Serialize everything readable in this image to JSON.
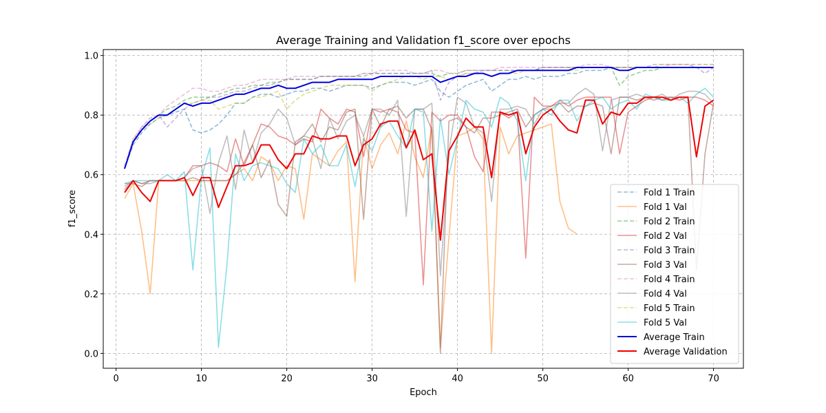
{
  "chart_data": {
    "type": "line",
    "title": "Average Training and Validation f1_score over epochs",
    "xlabel": "Epoch",
    "ylabel": "f1_score",
    "xlim": [
      -1.5,
      73.5
    ],
    "ylim": [
      -0.05,
      1.02
    ],
    "xticks": [
      0,
      10,
      20,
      30,
      40,
      50,
      60,
      70
    ],
    "yticks": [
      0.0,
      0.2,
      0.4,
      0.6,
      0.8,
      1.0
    ],
    "xtick_labels": [
      "0",
      "10",
      "20",
      "30",
      "40",
      "50",
      "60",
      "70"
    ],
    "ytick_labels": [
      "0.0",
      "0.2",
      "0.4",
      "0.6",
      "0.8",
      "1.0"
    ],
    "grid": true,
    "legend_position": "lower right",
    "x": [
      1,
      2,
      3,
      4,
      5,
      6,
      7,
      8,
      9,
      10,
      11,
      12,
      13,
      14,
      15,
      16,
      17,
      18,
      19,
      20,
      21,
      22,
      23,
      24,
      25,
      26,
      27,
      28,
      29,
      30,
      31,
      32,
      33,
      34,
      35,
      36,
      37,
      38,
      39,
      40,
      41,
      42,
      43,
      44,
      45,
      46,
      47,
      48,
      49,
      50,
      51,
      52,
      53,
      54,
      55,
      56,
      57,
      58,
      59,
      60,
      61,
      62,
      63,
      64,
      65,
      66,
      67,
      68,
      69,
      70
    ],
    "series": [
      {
        "name": "Fold 1 Train",
        "color": "#1f77b4",
        "style": "dashed",
        "alpha": 0.5,
        "values": [
          0.62,
          0.7,
          0.74,
          0.77,
          0.79,
          0.8,
          0.81,
          0.82,
          0.75,
          0.74,
          0.75,
          0.77,
          0.8,
          0.84,
          0.84,
          0.86,
          0.87,
          0.87,
          0.86,
          0.87,
          0.88,
          0.88,
          0.89,
          0.89,
          0.88,
          0.89,
          0.9,
          0.9,
          0.9,
          0.89,
          0.9,
          0.91,
          0.91,
          0.91,
          0.9,
          0.91,
          0.92,
          0.88,
          0.86,
          0.88,
          0.9,
          0.91,
          0.92,
          0.88,
          0.9,
          0.92,
          0.92,
          0.93,
          0.92,
          0.93,
          0.93,
          0.93,
          0.94,
          0.94,
          0.95,
          0.95,
          0.95,
          0.96,
          0.96,
          0.96,
          0.96,
          0.96,
          0.96,
          0.96,
          0.96,
          0.96,
          0.96,
          0.96,
          0.96,
          0.96
        ]
      },
      {
        "name": "Fold 1 Val",
        "color": "#ff7f0e",
        "style": "solid",
        "alpha": 0.5,
        "values": [
          0.52,
          0.57,
          0.41,
          0.2,
          0.58,
          0.58,
          0.58,
          0.58,
          0.58,
          0.58,
          0.58,
          0.58,
          0.58,
          0.6,
          0.62,
          0.58,
          0.66,
          0.64,
          0.58,
          0.63,
          0.62,
          0.45,
          0.67,
          0.65,
          0.63,
          0.68,
          0.71,
          0.24,
          0.73,
          0.62,
          0.7,
          0.74,
          0.67,
          0.78,
          0.66,
          0.59,
          0.76,
          0.02,
          0.39,
          0.73,
          0.74,
          0.76,
          0.72,
          0.0,
          0.76,
          0.67,
          0.73,
          0.74,
          0.75,
          0.76,
          0.77,
          0.51,
          0.42,
          0.4,
          null,
          null,
          null,
          null,
          null,
          null,
          null,
          null,
          null,
          null,
          null,
          null,
          null,
          null,
          null,
          null
        ]
      },
      {
        "name": "Fold 2 Train",
        "color": "#2ca02c",
        "style": "dashed",
        "alpha": 0.5,
        "values": [
          0.62,
          0.71,
          0.75,
          0.78,
          0.8,
          0.82,
          0.83,
          0.85,
          0.86,
          0.86,
          0.86,
          0.87,
          0.88,
          0.89,
          0.89,
          0.9,
          0.9,
          0.91,
          0.91,
          0.92,
          0.92,
          0.92,
          0.92,
          0.93,
          0.93,
          0.93,
          0.93,
          0.93,
          0.93,
          0.94,
          0.94,
          0.94,
          0.94,
          0.94,
          0.94,
          0.94,
          0.94,
          0.93,
          0.94,
          0.94,
          0.95,
          0.95,
          0.95,
          0.95,
          0.95,
          0.95,
          0.95,
          0.95,
          0.95,
          0.96,
          0.96,
          0.96,
          0.96,
          0.96,
          0.96,
          0.96,
          0.96,
          0.96,
          0.9,
          0.93,
          0.94,
          0.95,
          0.95,
          0.96,
          0.96,
          0.96,
          0.96,
          0.96,
          0.96,
          0.96
        ]
      },
      {
        "name": "Fold 2 Val",
        "color": "#d62728",
        "style": "solid",
        "alpha": 0.5,
        "values": [
          0.55,
          0.58,
          0.57,
          0.58,
          0.58,
          0.58,
          0.58,
          0.59,
          0.63,
          0.63,
          0.64,
          0.63,
          0.61,
          0.72,
          0.63,
          0.7,
          0.77,
          0.76,
          0.73,
          0.72,
          0.7,
          0.72,
          0.71,
          0.82,
          0.79,
          0.77,
          0.82,
          0.81,
          0.66,
          0.82,
          0.81,
          0.82,
          0.81,
          0.75,
          0.74,
          0.23,
          0.81,
          0.78,
          0.8,
          0.8,
          0.76,
          0.66,
          0.61,
          0.81,
          0.81,
          0.79,
          0.81,
          0.32,
          0.86,
          0.83,
          0.83,
          0.85,
          0.83,
          0.85,
          0.86,
          0.86,
          0.86,
          0.86,
          0.67,
          0.81,
          0.83,
          0.85,
          0.86,
          0.85,
          0.86,
          0.85,
          0.86,
          0.86,
          0.85,
          0.83
        ]
      },
      {
        "name": "Fold 3 Train",
        "color": "#9467bd",
        "style": "dashed",
        "alpha": 0.5,
        "values": [
          0.62,
          0.71,
          0.76,
          0.79,
          0.8,
          0.76,
          0.79,
          0.82,
          0.84,
          0.85,
          0.86,
          0.86,
          0.87,
          0.88,
          0.88,
          0.89,
          0.9,
          0.9,
          0.91,
          0.92,
          0.92,
          0.92,
          0.92,
          0.93,
          0.93,
          0.93,
          0.93,
          0.93,
          0.94,
          0.94,
          0.94,
          0.94,
          0.94,
          0.94,
          0.94,
          0.94,
          0.95,
          0.85,
          0.91,
          0.93,
          0.94,
          0.94,
          0.95,
          0.95,
          0.95,
          0.95,
          0.95,
          0.95,
          0.95,
          0.96,
          0.96,
          0.96,
          0.96,
          0.96,
          0.96,
          0.96,
          0.96,
          0.96,
          0.96,
          0.96,
          0.96,
          0.96,
          0.97,
          0.97,
          0.97,
          0.97,
          0.97,
          0.96,
          0.94,
          0.96
        ]
      },
      {
        "name": "Fold 3 Val",
        "color": "#8c564b",
        "style": "solid",
        "alpha": 0.5,
        "values": [
          0.57,
          0.57,
          0.56,
          0.58,
          0.58,
          0.58,
          0.58,
          0.58,
          0.59,
          0.58,
          0.58,
          0.58,
          0.58,
          0.6,
          0.64,
          0.7,
          0.59,
          0.65,
          0.5,
          0.46,
          0.71,
          0.73,
          0.77,
          0.71,
          0.76,
          0.75,
          0.81,
          0.82,
          0.45,
          0.82,
          0.76,
          0.82,
          0.83,
          0.79,
          0.82,
          0.82,
          0.75,
          0.0,
          0.78,
          0.79,
          0.76,
          0.74,
          0.79,
          0.79,
          0.8,
          0.81,
          0.82,
          0.76,
          0.8,
          0.82,
          0.83,
          0.84,
          0.81,
          0.83,
          0.83,
          0.84,
          0.83,
          0.67,
          0.86,
          0.86,
          0.85,
          0.86,
          0.85,
          0.86,
          0.86,
          0.86,
          0.86,
          0.28,
          0.67,
          0.84
        ]
      },
      {
        "name": "Fold 4 Train",
        "color": "#e377c2",
        "style": "dashed",
        "alpha": 0.5,
        "values": [
          0.63,
          0.72,
          0.76,
          0.78,
          0.8,
          0.83,
          0.85,
          0.87,
          0.89,
          0.89,
          0.88,
          0.88,
          0.89,
          0.9,
          0.9,
          0.91,
          0.92,
          0.92,
          0.92,
          0.92,
          0.93,
          0.93,
          0.93,
          0.93,
          0.93,
          0.93,
          0.93,
          0.93,
          0.94,
          0.94,
          0.95,
          0.95,
          0.95,
          0.95,
          0.94,
          0.94,
          0.95,
          0.95,
          0.94,
          0.94,
          0.95,
          0.95,
          0.95,
          0.95,
          0.96,
          0.96,
          0.96,
          0.96,
          0.96,
          0.96,
          0.96,
          0.96,
          0.96,
          0.96,
          0.97,
          0.97,
          0.97,
          0.96,
          0.96,
          0.96,
          0.96,
          0.96,
          0.96,
          0.96,
          0.97,
          0.97,
          0.97,
          0.97,
          0.97,
          0.97
        ]
      },
      {
        "name": "Fold 4 Val",
        "color": "#7f7f7f",
        "style": "solid",
        "alpha": 0.5,
        "values": [
          0.56,
          0.58,
          0.57,
          0.57,
          0.58,
          0.58,
          0.58,
          0.59,
          0.62,
          0.63,
          0.47,
          0.64,
          0.73,
          0.55,
          0.75,
          0.64,
          0.74,
          0.77,
          0.82,
          0.79,
          0.7,
          0.73,
          0.72,
          0.62,
          0.79,
          0.72,
          0.78,
          0.8,
          0.73,
          0.82,
          0.82,
          0.8,
          0.85,
          0.46,
          0.82,
          0.82,
          0.84,
          0.26,
          0.68,
          0.86,
          0.84,
          0.76,
          0.74,
          0.51,
          0.82,
          0.82,
          0.83,
          0.82,
          0.77,
          0.82,
          0.82,
          0.84,
          0.84,
          0.87,
          0.89,
          0.87,
          0.68,
          0.85,
          0.86,
          0.86,
          0.87,
          0.86,
          0.86,
          0.87,
          0.85,
          0.87,
          0.88,
          0.88,
          0.87,
          0.84
        ]
      },
      {
        "name": "Fold 5 Train",
        "color": "#bcbd22",
        "style": "dashed",
        "alpha": 0.5,
        "values": [
          0.62,
          0.72,
          0.75,
          0.77,
          0.79,
          0.8,
          0.82,
          0.84,
          0.84,
          0.85,
          0.85,
          0.82,
          0.83,
          0.84,
          0.84,
          0.86,
          0.86,
          0.87,
          0.88,
          0.82,
          0.85,
          0.87,
          0.88,
          0.89,
          0.9,
          0.9,
          0.9,
          0.9,
          0.9,
          0.88,
          0.9,
          0.91,
          0.92,
          0.93,
          0.93,
          0.92,
          0.93,
          0.93,
          0.92,
          0.93,
          0.94,
          0.94,
          0.94,
          0.93,
          0.94,
          0.94,
          0.94,
          0.95,
          0.95,
          0.95,
          0.95,
          0.95,
          0.95,
          0.95,
          0.96,
          0.96,
          0.96,
          0.96,
          0.96,
          0.96,
          0.96,
          0.96,
          0.96,
          0.97,
          0.97,
          0.97,
          0.97,
          0.97,
          0.97,
          0.97
        ]
      },
      {
        "name": "Fold 5 Val",
        "color": "#17becf",
        "style": "solid",
        "alpha": 0.5,
        "values": [
          0.57,
          0.58,
          0.58,
          0.58,
          0.58,
          0.6,
          0.58,
          0.61,
          0.28,
          0.59,
          0.69,
          0.02,
          0.3,
          0.67,
          0.58,
          0.63,
          0.64,
          0.63,
          0.62,
          0.57,
          0.54,
          0.72,
          0.67,
          0.7,
          0.63,
          0.63,
          0.7,
          0.56,
          0.72,
          0.68,
          0.76,
          0.78,
          0.73,
          0.69,
          0.82,
          0.81,
          0.41,
          0.79,
          0.6,
          0.72,
          0.85,
          0.82,
          0.81,
          0.76,
          0.86,
          0.84,
          0.78,
          0.58,
          0.8,
          0.82,
          0.8,
          0.85,
          0.85,
          0.78,
          0.83,
          0.85,
          0.86,
          0.82,
          0.84,
          0.85,
          0.82,
          0.87,
          0.86,
          0.85,
          0.85,
          0.86,
          0.84,
          0.87,
          0.89,
          0.86
        ]
      },
      {
        "name": "Average Train",
        "color": "#0000dd",
        "style": "solid",
        "alpha": 1.0,
        "values": [
          0.62,
          0.71,
          0.75,
          0.78,
          0.8,
          0.8,
          0.82,
          0.84,
          0.83,
          0.84,
          0.84,
          0.85,
          0.86,
          0.87,
          0.87,
          0.88,
          0.89,
          0.89,
          0.9,
          0.89,
          0.89,
          0.9,
          0.91,
          0.91,
          0.91,
          0.92,
          0.92,
          0.92,
          0.92,
          0.92,
          0.93,
          0.93,
          0.93,
          0.93,
          0.93,
          0.93,
          0.93,
          0.91,
          0.92,
          0.93,
          0.93,
          0.94,
          0.94,
          0.93,
          0.94,
          0.94,
          0.95,
          0.95,
          0.95,
          0.95,
          0.95,
          0.95,
          0.95,
          0.96,
          0.96,
          0.96,
          0.96,
          0.96,
          0.95,
          0.95,
          0.96,
          0.96,
          0.96,
          0.96,
          0.96,
          0.96,
          0.96,
          0.96,
          0.96,
          0.96
        ]
      },
      {
        "name": "Average Validation",
        "color": "#ee0000",
        "style": "solid",
        "alpha": 1.0,
        "values": [
          0.54,
          0.58,
          0.54,
          0.51,
          0.58,
          0.58,
          0.58,
          0.59,
          0.53,
          0.59,
          0.59,
          0.49,
          0.56,
          0.63,
          0.63,
          0.64,
          0.7,
          0.7,
          0.65,
          0.62,
          0.67,
          0.67,
          0.73,
          0.72,
          0.72,
          0.73,
          0.73,
          0.63,
          0.7,
          0.72,
          0.77,
          0.78,
          0.78,
          0.69,
          0.75,
          0.65,
          0.67,
          0.38,
          0.68,
          0.73,
          0.79,
          0.76,
          0.76,
          0.59,
          0.81,
          0.8,
          0.81,
          0.67,
          0.76,
          0.8,
          0.82,
          0.78,
          0.75,
          0.74,
          0.85,
          0.85,
          0.77,
          0.81,
          0.8,
          0.84,
          0.84,
          0.86,
          0.86,
          0.86,
          0.85,
          0.86,
          0.86,
          0.66,
          0.83,
          0.85
        ]
      }
    ]
  }
}
